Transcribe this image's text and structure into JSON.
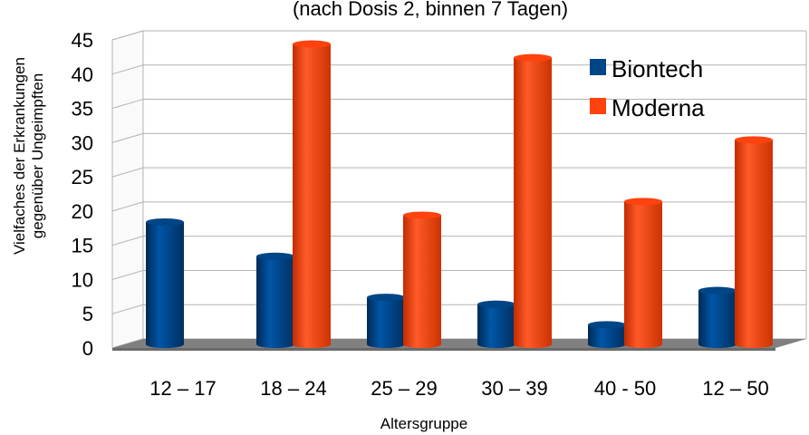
{
  "chart_data": {
    "type": "bar",
    "title": "(nach Dosis 2, binnen 7 Tagen)",
    "xlabel": "Altersgruppe",
    "ylabel": [
      "Vielfaches der Erkrankungen",
      "gegenüber Ungeimpften"
    ],
    "ylim": [
      0,
      45
    ],
    "yticks": [
      0,
      5,
      10,
      15,
      20,
      25,
      30,
      35,
      40,
      45
    ],
    "grid": true,
    "legend_position": "top-right",
    "categories": [
      "12 – 17",
      "18 – 24",
      "25 – 29",
      "30 – 39",
      "40  - 50",
      "12 – 50"
    ],
    "series": [
      {
        "name": "Biontech",
        "color": "#004586",
        "values": [
          18,
          13,
          7,
          6,
          3,
          8
        ]
      },
      {
        "name": "Moderna",
        "color": "#ff420e",
        "values": [
          null,
          44,
          19,
          42,
          21,
          30
        ]
      }
    ]
  }
}
